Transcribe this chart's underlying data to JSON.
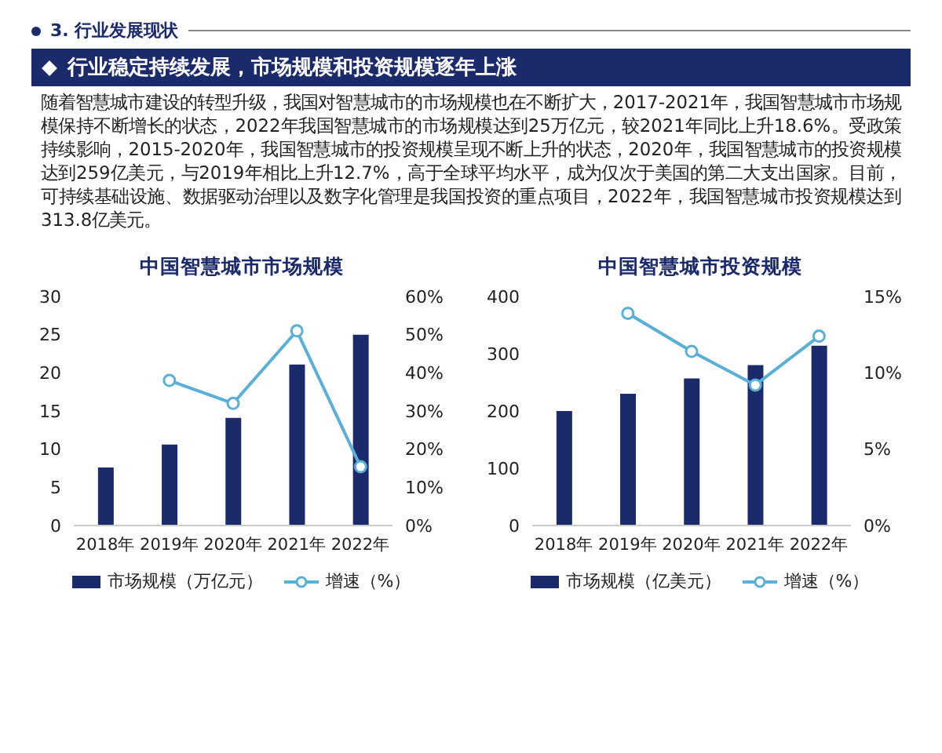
{
  "chart_data": [
    {
      "type": "other",
      "title": "3. 行业发展现状",
      "subtitle": "行业稳定持续发展，市场规模和投资规模逐年上涨",
      "annotations": [
        "随着智慧城市建设的转型升级，我国对智慧城市的市场规模也在不断扩大，2017-2021年，我国智慧城市市场规模保持不断增长的状态，2022年我国智慧城市的市场规模达到25万亿元，较2021年同比上升18.6%。受政策持续影响，2015-2020年，我国智慧城市的投资规模呈现不断上升的状态，2020年，我国智慧城市的投资规模达到259亿美元，与2019年相比上升12.7%，高于全球平均水平，成为仅次于美国的第二大支出国家。目前，可持续基础设施、数据驱动治理以及数字化管理是我国投资的重点项目，2022年，我国智慧城市投资规模达到313.8亿美元。"
      ]
    },
    {
      "type": "bar",
      "title": "中国智慧城市市场规模",
      "categories": [
        "2018年",
        "2019年",
        "2020年",
        "2021年",
        "2022年"
      ],
      "series": [
        {
          "name": "市场规模（万亿元）",
          "color": "#1b2a6b",
          "values": [
            7.6,
            10.6,
            14.1,
            21.1,
            25
          ]
        },
        {
          "name": "增速（%）",
          "type": "line",
          "axis": "y2",
          "color": "#5aafd6",
          "values": [
            null,
            38,
            32,
            51,
            15.4
          ]
        }
      ],
      "ylim": [
        0,
        30
      ],
      "yticks": [
        0,
        5,
        10,
        15,
        20,
        25,
        30
      ],
      "y2lim": [
        0,
        60
      ],
      "y2ticks": [
        {
          "value": 0,
          "label": "0%"
        },
        {
          "value": 10,
          "label": "10%"
        },
        {
          "value": 20,
          "label": "20%"
        },
        {
          "value": 30,
          "label": "30%"
        },
        {
          "value": 40,
          "label": "40%"
        },
        {
          "value": 50,
          "label": "50%"
        },
        {
          "value": 60,
          "label": "60%"
        }
      ],
      "marker": "circle",
      "legend": "bottom"
    },
    {
      "type": "bar",
      "title": "中国智慧城市投资规模",
      "categories": [
        "2018年",
        "2019年",
        "2020年",
        "2021年",
        "2022年"
      ],
      "series": [
        {
          "name": "市场规模（亿美元）",
          "color": "#1b2a6b",
          "values": [
            200,
            230,
            257,
            280,
            314
          ]
        },
        {
          "name": "增速（%）",
          "type": "line",
          "axis": "y2",
          "color": "#5aafd6",
          "values": [
            null,
            13.9,
            11.4,
            9.2,
            12.4
          ]
        }
      ],
      "ylim": [
        0,
        400
      ],
      "yticks": [
        0,
        100,
        200,
        300,
        400
      ],
      "y2lim": [
        0,
        15
      ],
      "y2ticks": [
        {
          "value": 0,
          "label": "0%"
        },
        {
          "value": 5,
          "label": "5%"
        },
        {
          "value": 10,
          "label": "10%"
        },
        {
          "value": 15,
          "label": "15%"
        }
      ],
      "marker": "circle",
      "legend": "bottom"
    }
  ]
}
